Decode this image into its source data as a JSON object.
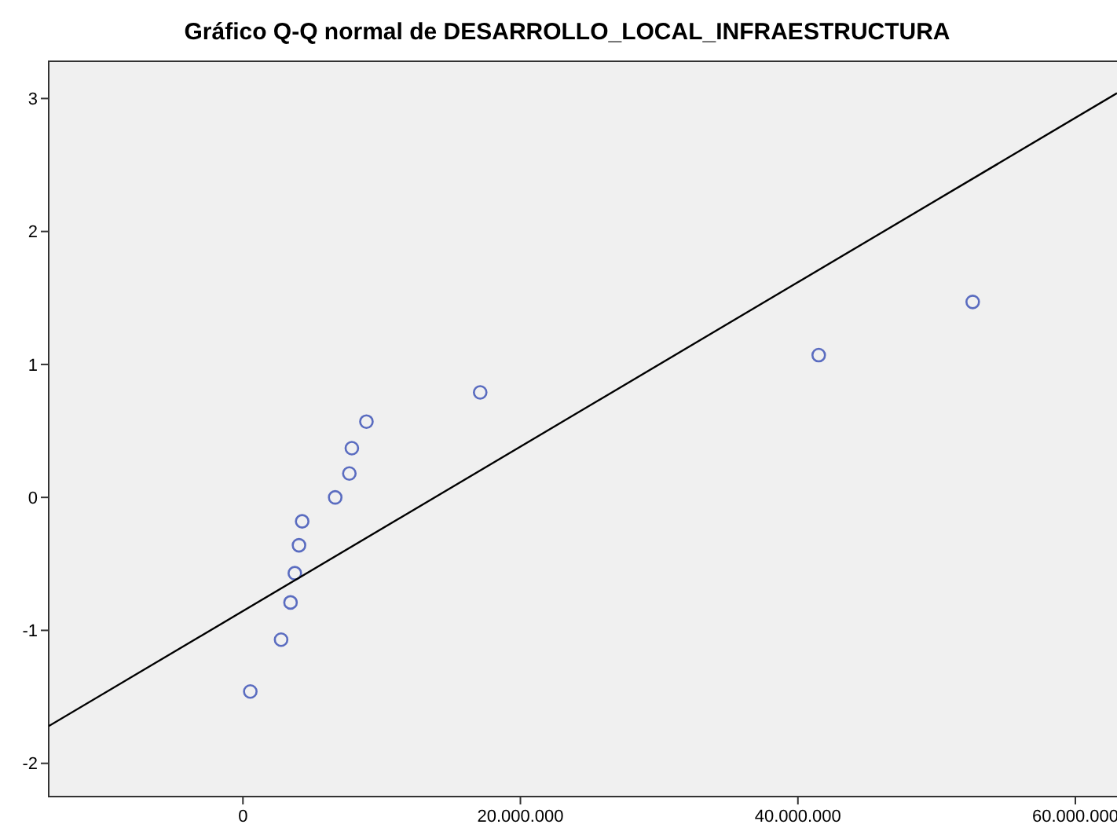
{
  "chart_data": {
    "type": "scatter",
    "title": "Gráfico Q-Q normal de DESARROLLO_LOCAL_INFRAESTRUCTURA",
    "xlim": [
      -14000000,
      63000000
    ],
    "xticks": [
      {
        "value": 0,
        "label": "0"
      },
      {
        "value": 20000000,
        "label": "20.000.000"
      },
      {
        "value": 40000000,
        "label": "40.000.000"
      },
      {
        "value": 60000000,
        "label": "60.000.000"
      }
    ],
    "ylim": [
      -2.25,
      3.28
    ],
    "yticks": [
      -2,
      -1,
      0,
      1,
      2,
      3
    ],
    "grid": false,
    "marker": "circle",
    "series": [
      {
        "color": "#5a6cc0",
        "x": [
          530000,
          2750000,
          3430000,
          3740000,
          4040000,
          4270000,
          6650000,
          7670000,
          7850000,
          8900000,
          17100000,
          41500000,
          52600000
        ],
        "values": [
          -1.46,
          -1.07,
          -0.79,
          -0.57,
          -0.36,
          -0.18,
          0,
          0.18,
          0.37,
          0.57,
          0.79,
          1.07,
          1.47
        ]
      },
      {
        "type": "line",
        "color": "#000000",
        "marker": "none",
        "line_style": "solid",
        "x": [
          -14000000,
          63000000
        ],
        "values": [
          -1.72,
          3.04
        ]
      }
    ]
  }
}
